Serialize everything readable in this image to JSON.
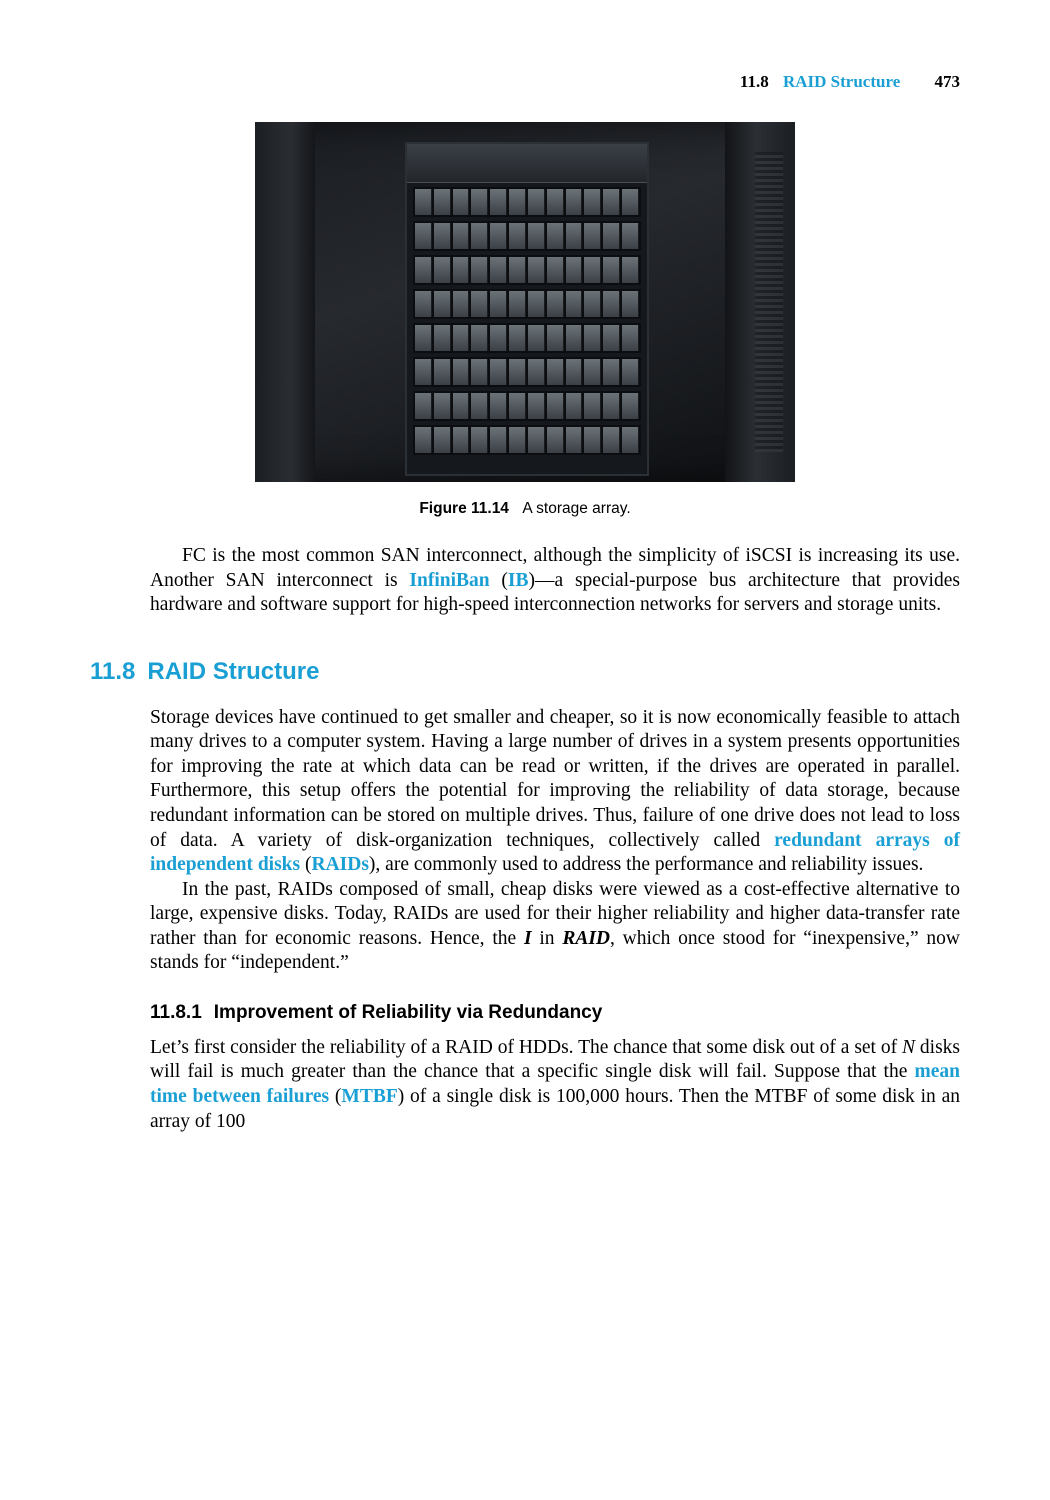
{
  "running_head": {
    "section_number": "11.8",
    "section_title": "RAID Structure",
    "page_number": "473"
  },
  "figure": {
    "label": "Figure 11.14",
    "caption": "A storage array."
  },
  "para_fc_part1": "FC is the most common SAN interconnect, although the simplicity of iSCSI is increasing its use. Another SAN interconnect is ",
  "term_infiniban": "InfiniBan",
  "para_fc_part2": " (",
  "term_ib": "IB",
  "para_fc_part3": ")—a special-purpose bus architecture that provides hardware and software support for high-speed interconnection networks for servers and storage units.",
  "section": {
    "number": "11.8",
    "title": "RAID Structure"
  },
  "para_raid1a": "Storage devices have continued to get smaller and cheaper, so it is now economically feasible to attach many drives to a computer system. Having a large number of drives in a system presents opportunities for improving the rate at which data can be read or written, if the drives are operated in parallel. Furthermore, this setup offers the potential for improving the reliability of data storage, because redundant information can be stored on multiple drives. Thus, failure of one drive does not lead to loss of data. A variety of disk-organization techniques, collectively called ",
  "term_raid_full": "redundant arrays of independent disks",
  "para_raid1b": " (",
  "term_raids": "RAIDs",
  "para_raid1c": "), are commonly used to address the performance and reliability issues.",
  "para_raid2a": "In the past, RAIDs composed of small, cheap disks were viewed as a cost-effective alternative to large, expensive disks. Today, RAIDs are used for their higher reliability and higher data-transfer rate rather than for economic reasons. Hence, the ",
  "para_raid2_i": "I",
  "para_raid2b": " in ",
  "para_raid2_raid": "RAID",
  "para_raid2c": ", which once stood for “inexpensive,” now stands for “independent.”",
  "subsection": {
    "number": "11.8.1",
    "title": "Improvement of Reliability via Redundancy"
  },
  "para_sub1a": "Let’s first consider the reliability of a RAID of HDDs. The chance that some disk out of a set of ",
  "para_sub1_n": "N",
  "para_sub1b": " disks will fail is much greater than the chance that a specific single disk will fail. Suppose that the ",
  "term_mtbf_full": "mean time between failures",
  "para_sub1c": " (",
  "term_mtbf": "MTBF",
  "para_sub1d": ") of a single disk is 100,000 hours. Then the MTBF of some disk in an array of 100"
}
